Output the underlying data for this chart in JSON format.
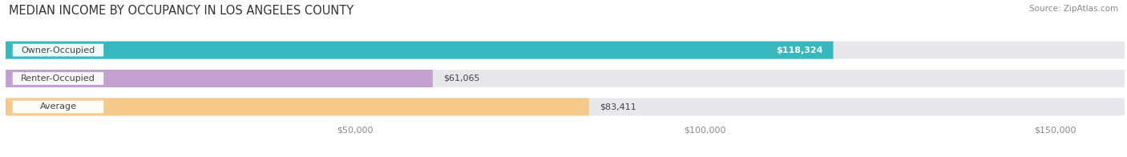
{
  "title": "MEDIAN INCOME BY OCCUPANCY IN LOS ANGELES COUNTY",
  "source": "Source: ZipAtlas.com",
  "categories": [
    "Owner-Occupied",
    "Renter-Occupied",
    "Average"
  ],
  "values": [
    118324,
    61065,
    83411
  ],
  "labels": [
    "$118,324",
    "$61,065",
    "$83,411"
  ],
  "bar_colors": [
    "#35b8be",
    "#c4a0d0",
    "#f5c98a"
  ],
  "xlim": [
    0,
    160000
  ],
  "xticks": [
    50000,
    100000,
    150000
  ],
  "xticklabels": [
    "$50,000",
    "$100,000",
    "$150,000"
  ],
  "background_color": "#ffffff",
  "bar_bg_color": "#e8e8ec",
  "title_fontsize": 10.5,
  "source_fontsize": 7.5,
  "tick_fontsize": 8,
  "label_fontsize": 8,
  "bar_height": 0.62,
  "figsize": [
    14.06,
    1.96
  ],
  "dpi": 100
}
